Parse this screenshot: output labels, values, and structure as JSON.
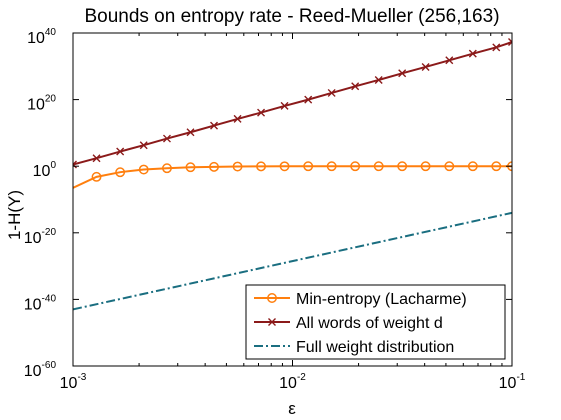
{
  "chart_data": {
    "type": "line",
    "title": "Bounds on entropy rate - Reed-Mueller (256,163)",
    "xlabel": "ε",
    "ylabel": "1-H(Y)",
    "x_scale": "log",
    "y_scale": "log",
    "xlim": [
      0.001,
      0.1
    ],
    "ylim_log10": [
      -60,
      40
    ],
    "x_ticks": [
      {
        "base": "10",
        "exp": "-3",
        "value": 0.001
      },
      {
        "base": "10",
        "exp": "-2",
        "value": 0.01
      },
      {
        "base": "10",
        "exp": "-1",
        "value": 0.1
      }
    ],
    "y_ticks": [
      {
        "base": "10",
        "exp": "40",
        "log10": 40
      },
      {
        "base": "10",
        "exp": "20",
        "log10": 20
      },
      {
        "base": "10",
        "exp": "0",
        "log10": 0
      },
      {
        "base": "10",
        "exp": "-20",
        "log10": -20
      },
      {
        "base": "10",
        "exp": "-40",
        "log10": -40
      },
      {
        "base": "10",
        "exp": "-60",
        "log10": -60
      }
    ],
    "grid": false,
    "legend_position": "bottom-right",
    "series": [
      {
        "name": "Min-entropy (Lacharme)",
        "color": "#ff7f0e",
        "marker": "circle",
        "line_style": "solid",
        "x": [
          0.001,
          0.00128,
          0.00164,
          0.0021,
          0.00268,
          0.00343,
          0.00439,
          0.00562,
          0.00719,
          0.0092,
          0.01179,
          0.01508,
          0.0193,
          0.0247,
          0.0316,
          0.0404,
          0.0518,
          0.0663,
          0.0848,
          0.1
        ],
        "log10_y": [
          -6.5,
          -3.2,
          -1.8,
          -1.0,
          -0.6,
          -0.3,
          -0.2,
          -0.1,
          -0.05,
          -0.02,
          -0.01,
          -0.01,
          0,
          0,
          0,
          0,
          0,
          0,
          0,
          0
        ],
        "marker_indices": [
          1,
          2,
          3,
          4,
          5,
          6,
          7,
          8,
          9,
          10,
          11,
          12,
          13,
          14,
          15,
          16,
          17,
          18,
          19
        ]
      },
      {
        "name": "All words of weight d",
        "color": "#8b1a1a",
        "marker": "x",
        "line_style": "solid",
        "x": [
          0.001,
          0.00128,
          0.00164,
          0.0021,
          0.00268,
          0.00343,
          0.00439,
          0.00562,
          0.00719,
          0.0092,
          0.01179,
          0.01508,
          0.0193,
          0.0247,
          0.0316,
          0.0404,
          0.0518,
          0.0663,
          0.0848,
          0.1
        ],
        "log10_y": [
          0.5,
          2.4,
          4.4,
          6.3,
          8.3,
          10.2,
          12.2,
          14.2,
          16.1,
          18.1,
          20.0,
          22.0,
          24.0,
          25.9,
          27.9,
          29.8,
          31.8,
          33.8,
          35.7,
          37.3
        ],
        "marker_indices": [
          0,
          1,
          2,
          3,
          4,
          5,
          6,
          7,
          8,
          9,
          10,
          11,
          12,
          13,
          14,
          15,
          16,
          17,
          18,
          19
        ]
      },
      {
        "name": "Full weight distribution",
        "color": "#1a6e80",
        "marker": "none",
        "line_style": "dashdot",
        "x": [
          0.001,
          0.1
        ],
        "log10_y": [
          -43,
          -14
        ],
        "marker_indices": []
      }
    ]
  }
}
